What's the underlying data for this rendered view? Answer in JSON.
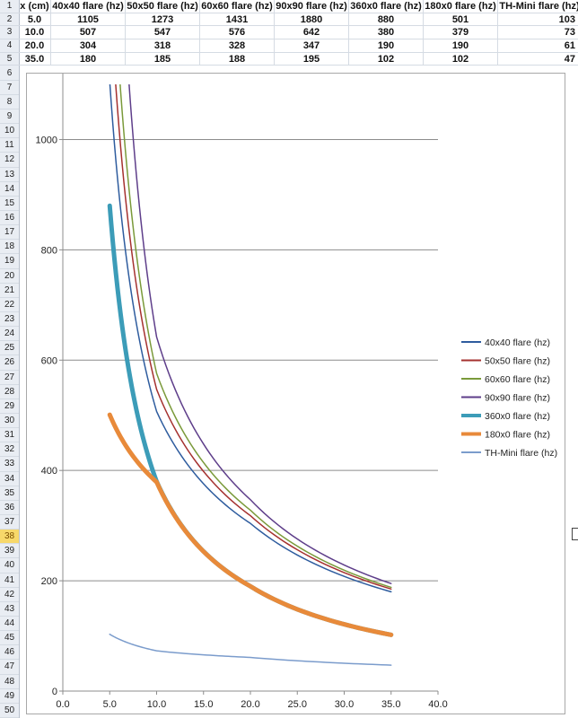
{
  "spreadsheet": {
    "row_numbers": [
      "1",
      "2",
      "3",
      "4",
      "5",
      "6",
      "7",
      "8",
      "9",
      "10",
      "11",
      "12",
      "13",
      "14",
      "15",
      "16",
      "17",
      "18",
      "19",
      "20",
      "21",
      "22",
      "23",
      "24",
      "25",
      "26",
      "27",
      "28",
      "29",
      "30",
      "31",
      "32",
      "33",
      "34",
      "35",
      "36",
      "37",
      "38",
      "39",
      "40",
      "41",
      "42",
      "43",
      "44",
      "45",
      "46",
      "47",
      "48",
      "49",
      "50"
    ],
    "selected_row": "38",
    "headers": [
      "x (cm)",
      "40x40 flare (hz)",
      "50x50 flare (hz)",
      "60x60 flare (hz)",
      "90x90 flare (hz)",
      "360x0 flare (hz)",
      "180x0 flare (hz)",
      "TH-Mini flare (hz)"
    ],
    "rows": [
      [
        "5.0",
        "1105",
        "1273",
        "1431",
        "1880",
        "880",
        "501",
        "103"
      ],
      [
        "10.0",
        "507",
        "547",
        "576",
        "642",
        "380",
        "379",
        "73"
      ],
      [
        "20.0",
        "304",
        "318",
        "328",
        "347",
        "190",
        "190",
        "61"
      ],
      [
        "35.0",
        "180",
        "185",
        "188",
        "195",
        "102",
        "102",
        "47"
      ]
    ]
  },
  "chart_data": {
    "type": "line",
    "x": [
      5.0,
      10.0,
      20.0,
      35.0
    ],
    "xlim": [
      0,
      40
    ],
    "ylim": [
      0,
      1100
    ],
    "x_ticks": [
      "0.0",
      "5.0",
      "10.0",
      "15.0",
      "20.0",
      "25.0",
      "30.0",
      "35.0",
      "40.0"
    ],
    "y_ticks": [
      "0",
      "200",
      "400",
      "600",
      "800",
      "1000"
    ],
    "grid": true,
    "legend": "right",
    "series": [
      {
        "name": "40x40 flare (hz)",
        "values": [
          1105,
          507,
          304,
          180
        ],
        "color": "#2e5c9e",
        "width": 1.5
      },
      {
        "name": "50x50 flare (hz)",
        "values": [
          1273,
          547,
          318,
          185
        ],
        "color": "#a5312f",
        "width": 1.5
      },
      {
        "name": "60x60 flare (hz)",
        "values": [
          1431,
          576,
          328,
          188
        ],
        "color": "#7a9a3a",
        "width": 1.5
      },
      {
        "name": "90x90 flare (hz)",
        "values": [
          1880,
          642,
          347,
          195
        ],
        "color": "#5e3e8a",
        "width": 1.5
      },
      {
        "name": "360x0 flare (hz)",
        "values": [
          880,
          380,
          190,
          102
        ],
        "color": "#3c9cb8",
        "width": 5
      },
      {
        "name": "180x0 flare (hz)",
        "values": [
          501,
          379,
          190,
          102
        ],
        "color": "#e88a3a",
        "width": 5
      },
      {
        "name": "TH-Mini flare (hz)",
        "values": [
          103,
          73,
          61,
          47
        ],
        "color": "#7b9ccc",
        "width": 1.5
      }
    ]
  }
}
